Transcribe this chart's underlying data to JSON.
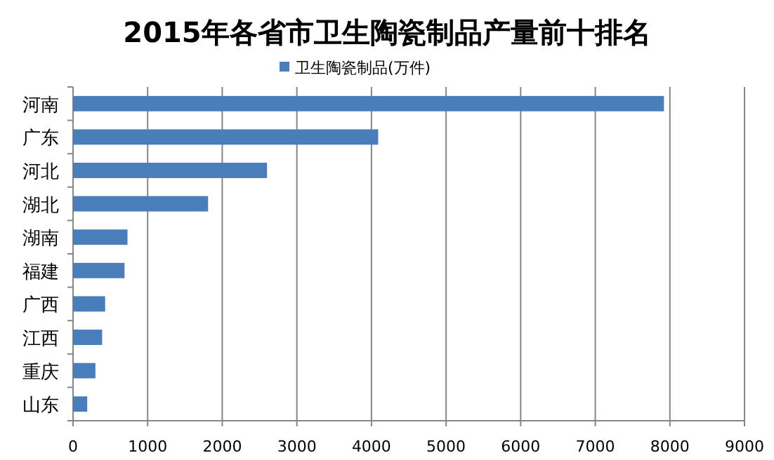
{
  "chart_data": {
    "type": "bar",
    "orientation": "horizontal",
    "title": "2015年各省市卫生陶瓷制品产量前十排名",
    "categories": [
      "河南",
      "广东",
      "河北",
      "湖北",
      "湖南",
      "福建",
      "广西",
      "江西",
      "重庆",
      "山东"
    ],
    "series": [
      {
        "name": "卫生陶瓷制品(万件)",
        "color": "#4a7ebb",
        "values": [
          7920,
          4090,
          2600,
          1810,
          730,
          690,
          430,
          390,
          300,
          190
        ]
      }
    ],
    "xlim": [
      0,
      9000
    ],
    "xticks": [
      0,
      1000,
      2000,
      3000,
      4000,
      5000,
      6000,
      7000,
      8000,
      9000
    ],
    "grid": "x",
    "legend": "top"
  }
}
